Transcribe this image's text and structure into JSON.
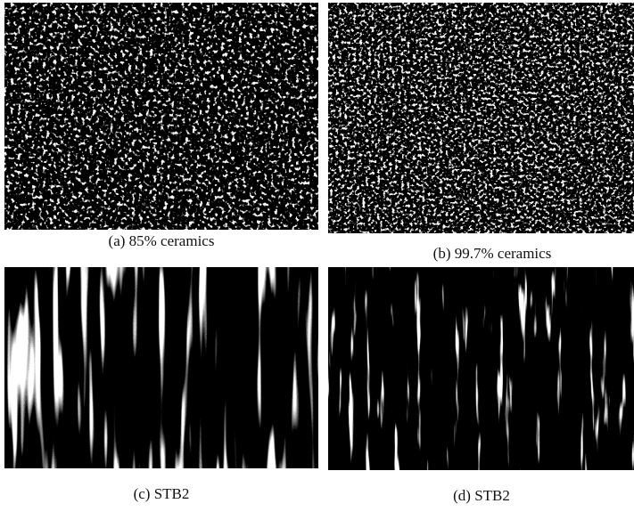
{
  "panels": [
    {
      "caption": "(a) 85% ceramics"
    },
    {
      "caption": "(b) 99.7% ceramics"
    },
    {
      "caption": "(c) STB2"
    },
    {
      "caption": "(d) STB2"
    }
  ]
}
